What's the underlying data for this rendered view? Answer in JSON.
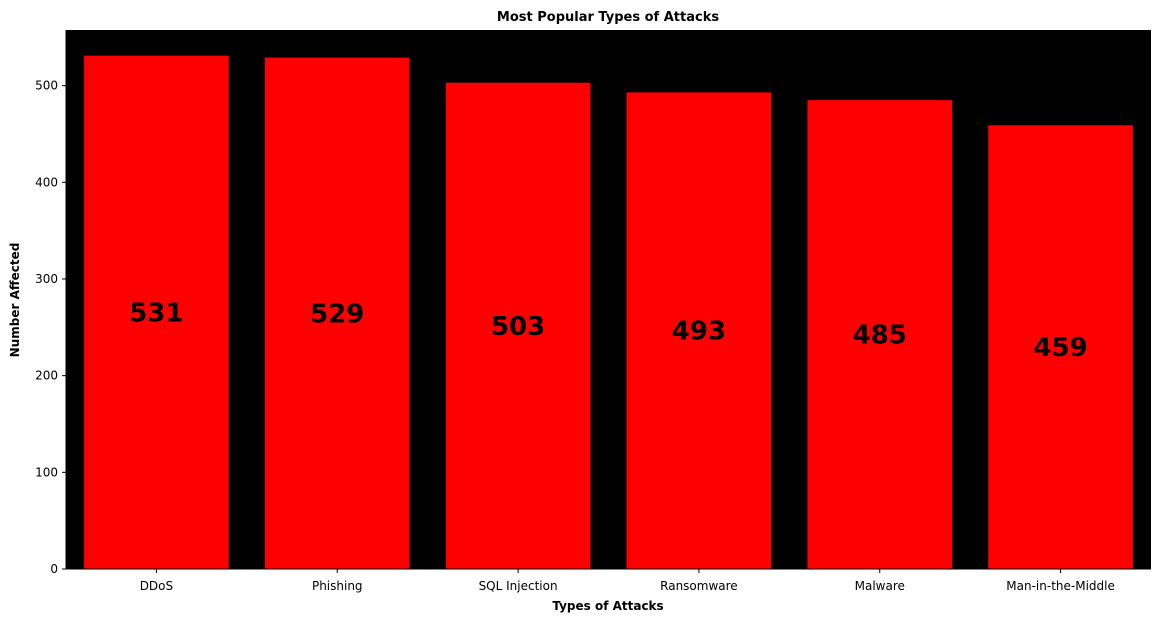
{
  "chart_data": {
    "type": "bar",
    "title": "Most Popular Types of Attacks",
    "xlabel": "Types of Attacks",
    "ylabel": "Number Affected",
    "categories": [
      "DDoS",
      "Phishing",
      "SQL Injection",
      "Ransomware",
      "Malware",
      "Man-in-the-Middle"
    ],
    "values": [
      531,
      529,
      503,
      493,
      485,
      459
    ],
    "data_labels": [
      "531",
      "529",
      "503",
      "493",
      "485",
      "459"
    ],
    "ylim": [
      0,
      557.55
    ],
    "yticks": [
      0,
      100,
      200,
      300,
      400,
      500
    ],
    "ytick_labels": [
      "0",
      "100",
      "200",
      "300",
      "400",
      "500"
    ],
    "grid": false,
    "legend": "none",
    "data_label_position": "center",
    "colors": {
      "bar": "#ff0000",
      "plot_background": "#000000",
      "figure_background": "#ffffff",
      "text": "#000000"
    }
  }
}
